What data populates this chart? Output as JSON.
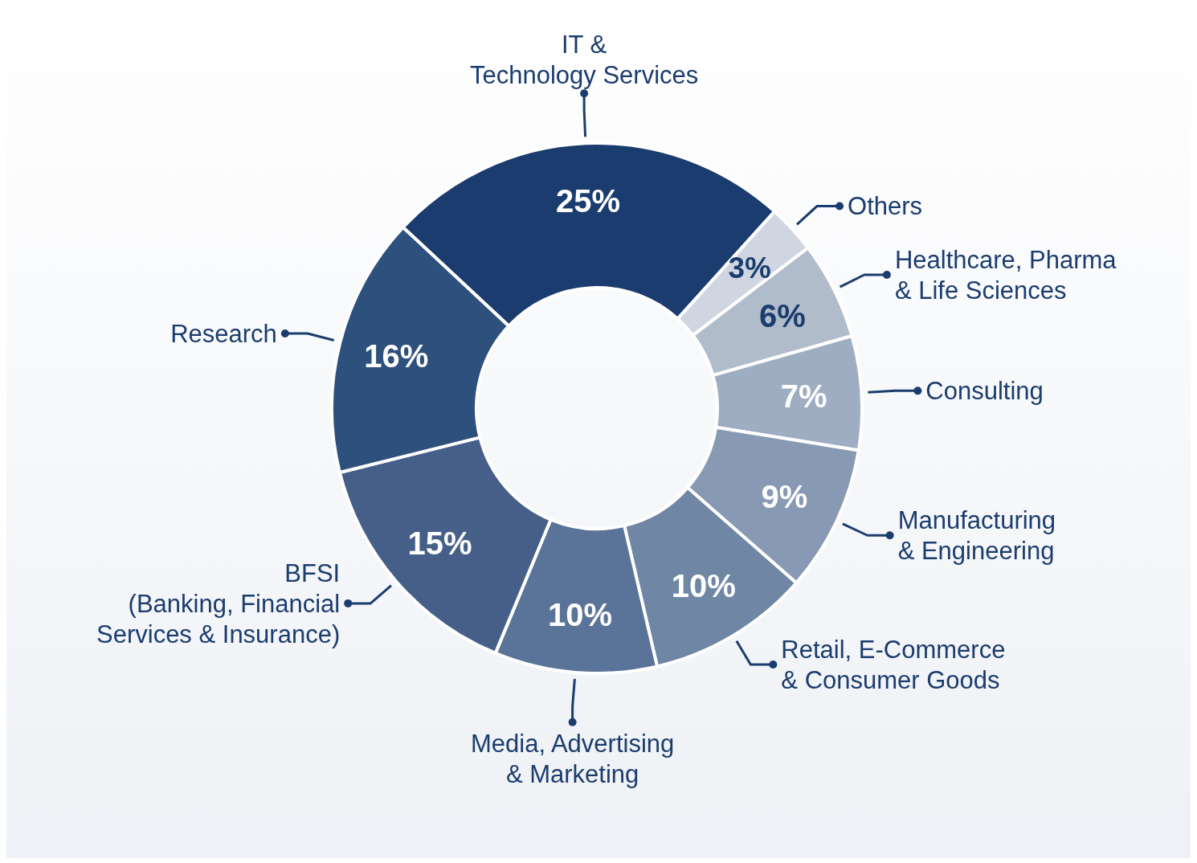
{
  "chart_data": {
    "type": "donut",
    "categories": [
      "IT &\nTechnology Services",
      "Others",
      "Healthcare, Pharma\n& Life Sciences",
      "Consulting",
      "Manufacturing\n& Engineering",
      "Retail, E-Commerce\n& Consumer Goods",
      "Media, Advertising\n& Marketing",
      "BFSI\n(Banking, Financial\nServices & Insurance)",
      "Research"
    ],
    "values": [
      25,
      3,
      6,
      7,
      9,
      10,
      10,
      15,
      16
    ],
    "value_labels": [
      "25%",
      "3%",
      "6%",
      "7%",
      "9%",
      "10%",
      "10%",
      "15%",
      "16%"
    ],
    "colors": [
      "#1b3c6e",
      "#cfd6e1",
      "#b1bccb",
      "#9eadc2",
      "#8799b3",
      "#6f86a5",
      "#5a7398",
      "#465f88",
      "#2e507c"
    ]
  }
}
